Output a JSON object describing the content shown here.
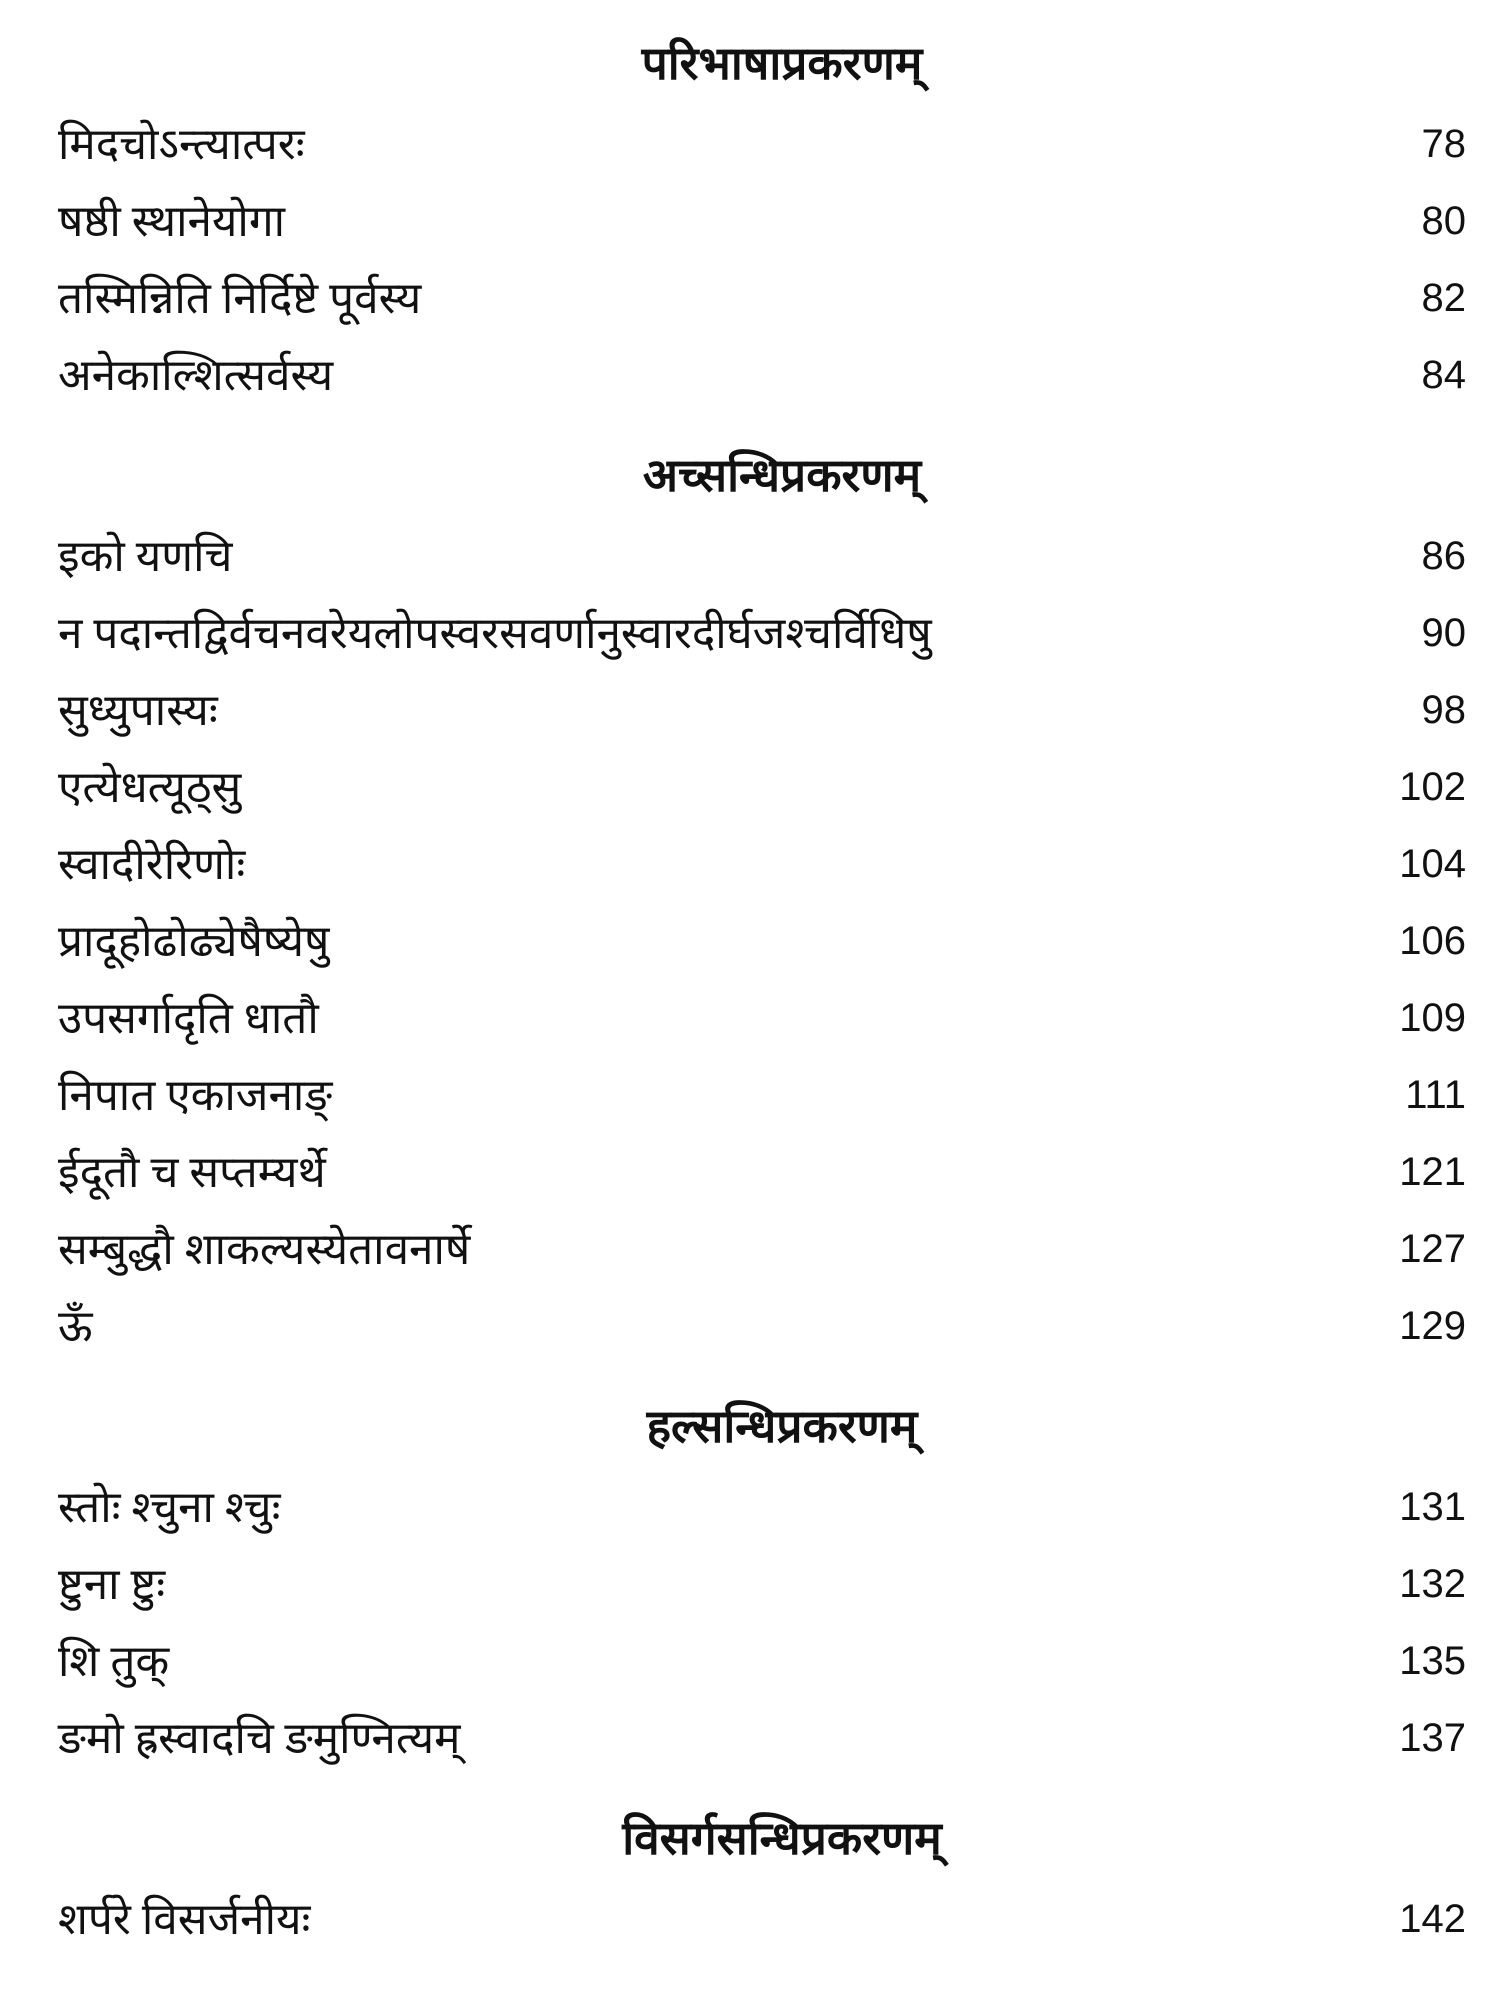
{
  "sections": [
    {
      "title": "परिभाषाप्रकरणम्",
      "entries": [
        {
          "text": "मिदचोऽन्त्यात्परः",
          "page": "78"
        },
        {
          "text": "षष्ठी स्थानेयोगा",
          "page": "80"
        },
        {
          "text": "तस्मिन्निति निर्दिष्टे पूर्वस्य",
          "page": "82"
        },
        {
          "text": "अनेकाल्शित्सर्वस्य",
          "page": "84"
        }
      ]
    },
    {
      "title": "अच्सन्धिप्रकरणम्",
      "entries": [
        {
          "text": "इको यणचि",
          "page": "86"
        },
        {
          "text": "न पदान्तद्विर्वचनवरेयलोपस्वरसवर्णानुस्वारदीर्घजश्चर्विधिषु",
          "page": "90"
        },
        {
          "text": "सुध्युपास्यः",
          "page": "98"
        },
        {
          "text": "एत्येधत्यूठ्सु",
          "page": "102"
        },
        {
          "text": "स्वादीरेरिणोः",
          "page": "104"
        },
        {
          "text": "प्रादूहोढोढ्येषैष्येषु",
          "page": "106"
        },
        {
          "text": "उपसर्गादृति धातौ",
          "page": "109"
        },
        {
          "text": "निपात एकाजनाङ्",
          "page": "111"
        },
        {
          "text": "ईदूतौ च सप्तम्यर्थे",
          "page": "121"
        },
        {
          "text": "सम्बुद्धौ शाकल्यस्येतावनार्षे",
          "page": "127"
        },
        {
          "text": "ऊँ",
          "page": "129"
        }
      ]
    },
    {
      "title": "हल्सन्धिप्रकरणम्",
      "entries": [
        {
          "text": "स्तोः श्चुना श्चुः",
          "page": "131"
        },
        {
          "text": "ष्टुना ष्टुः",
          "page": "132"
        },
        {
          "text": "शि तुक्",
          "page": "135"
        },
        {
          "text": "ङमो ह्रस्वादचि ङमुण्नित्यम्",
          "page": "137"
        }
      ]
    },
    {
      "title": "विसर्गसन्धिप्रकरणम्",
      "entries": [
        {
          "text": "शर्परे विसर्जनीयः",
          "page": "142"
        }
      ]
    }
  ]
}
